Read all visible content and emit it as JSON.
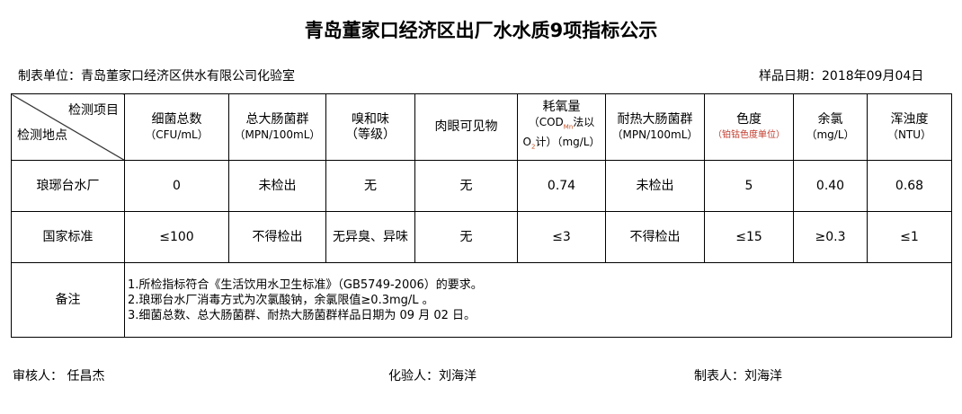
{
  "title": "青岛董家口经济区出厂水水质9项指标公示",
  "unit": "制表单位：青岛董家口经济区供水有限公司化验室",
  "date": "样品日期：2018年09月04日",
  "header": {
    "item": "检测项目",
    "location": "检测地点",
    "cols": [
      {
        "name": "细菌总数",
        "unit": "（CFU/mL）"
      },
      {
        "name": "总大肠菌群",
        "unit": "（MPN/100mL）"
      },
      {
        "name": "嗅和味",
        "unit": "（等级）"
      },
      {
        "name": "肉眼可见物",
        "unit": ""
      },
      {
        "name": "耗氧量",
        "unit_a": "（COD",
        "unit_sub": "Mn",
        "unit_b": "法以",
        "unit_c": "O",
        "unit_c_sub": "2",
        "unit_d": "计）（mg/L）"
      },
      {
        "name": "耐热大肠菌群",
        "unit": "（MPN/100mL）"
      },
      {
        "name": "色度",
        "unit": "（铂钴色度单位）"
      },
      {
        "name": "余氯",
        "unit": "（mg/L）"
      },
      {
        "name": "浑浊度",
        "unit": "（NTU）"
      }
    ]
  },
  "rows": [
    {
      "label": "琅琊台水厂",
      "values": [
        "0",
        "未检出",
        "无",
        "无",
        "0.74",
        "未检出",
        "5",
        "0.40",
        "0.68"
      ]
    },
    {
      "label": "国家标准",
      "values": [
        "≤100",
        "不得检出",
        "无异臭、异味",
        "无",
        "≤3",
        "不得检出",
        "≤15",
        "≥0.3",
        "≤1"
      ]
    }
  ],
  "notes": {
    "label": "备注",
    "lines": [
      "1.所检指标符合《生活饮用水卫生标准》（GB5749-2006）的要求。",
      "2.琅琊台水厂消毒方式为次氯酸钠，余氯限值≥0.3mg/L 。",
      "3.细菌总数、总大肠菌群、耐热大肠菌群样品日期为 09 月 02 日。"
    ]
  },
  "signatures": {
    "reviewer": "审核人：  任昌杰",
    "tester": "化验人：刘海洋",
    "maker": "制表人：刘海洋"
  }
}
